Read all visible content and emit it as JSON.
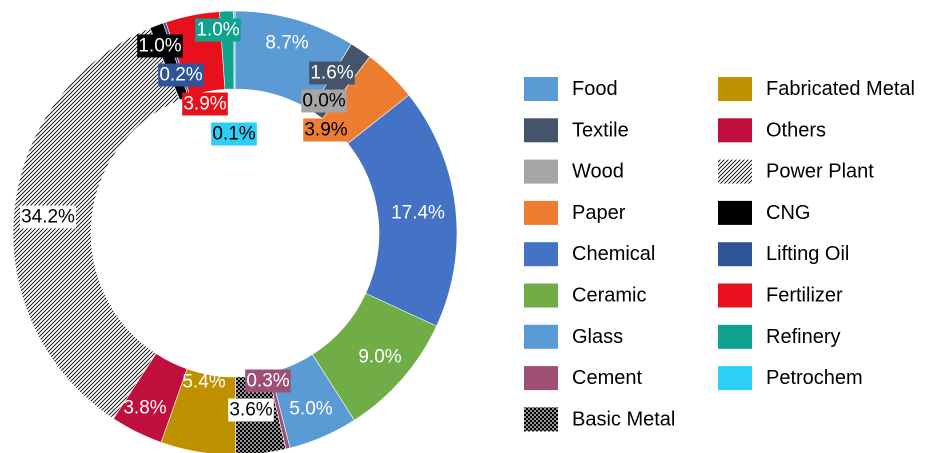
{
  "chart_data": {
    "type": "donut",
    "legend_position": "right",
    "unit": "%",
    "slices": [
      {
        "name": "Food",
        "value": 8.7,
        "label": "8.7%",
        "color": "#5b9bd5",
        "pattern": "solid",
        "label_bg": "",
        "label_color": "#ffffff"
      },
      {
        "name": "Textile",
        "value": 1.6,
        "label": "1.6%",
        "color": "#44546a",
        "pattern": "solid",
        "label_bg": "#44546a",
        "label_color": "#ffffff"
      },
      {
        "name": "Wood",
        "value": 0.0,
        "label": "0.0%",
        "color": "#a5a5a5",
        "pattern": "solid",
        "label_bg": "#a5a5a5",
        "label_color": "#000000"
      },
      {
        "name": "Paper",
        "value": 3.9,
        "label": "3.9%",
        "color": "#ed7d31",
        "pattern": "solid",
        "label_bg": "#ed7d31",
        "label_color": "#000000"
      },
      {
        "name": "Chemical",
        "value": 17.4,
        "label": "17.4%",
        "color": "#4472c4",
        "pattern": "solid",
        "label_bg": "",
        "label_color": "#ffffff"
      },
      {
        "name": "Ceramic",
        "value": 9.0,
        "label": "9.0%",
        "color": "#70ad47",
        "pattern": "solid",
        "label_bg": "",
        "label_color": "#ffffff"
      },
      {
        "name": "Glass",
        "value": 5.0,
        "label": "5.0%",
        "color": "#5b9bd5",
        "pattern": "solid",
        "label_bg": "#5b9bd5",
        "label_color": "#ffffff"
      },
      {
        "name": "Cement",
        "value": 0.3,
        "label": "0.3%",
        "color": "#9e4f76",
        "pattern": "solid",
        "label_bg": "#9e4f76",
        "label_color": "#ffffff"
      },
      {
        "name": "Basic Metal",
        "value": 3.6,
        "label": "3.6%",
        "color": "#000000",
        "pattern": "dots",
        "label_bg": "#ffffff",
        "label_color": "#000000"
      },
      {
        "name": "Fabricated Metal",
        "value": 5.4,
        "label": "5.4%",
        "color": "#bf9000",
        "pattern": "solid",
        "label_bg": "",
        "label_color": "#ffffff"
      },
      {
        "name": "Others",
        "value": 3.8,
        "label": "3.8%",
        "color": "#c00f3c",
        "pattern": "solid",
        "label_bg": "",
        "label_color": "#ffffff"
      },
      {
        "name": "Power Plant",
        "value": 34.2,
        "label": "34.2%",
        "color": "#000000",
        "pattern": "hatch",
        "label_bg": "#ffffff",
        "label_color": "#000000"
      },
      {
        "name": "CNG",
        "value": 1.0,
        "label": "1.0%",
        "color": "#000000",
        "pattern": "solid",
        "label_bg": "#000000",
        "label_color": "#ffffff"
      },
      {
        "name": "Lifting Oil",
        "value": 0.2,
        "label": "0.2%",
        "color": "#2f5597",
        "pattern": "solid",
        "label_bg": "#2f5597",
        "label_color": "#ffffff"
      },
      {
        "name": "Fertilizer",
        "value": 3.9,
        "label": "3.9%",
        "color": "#e8101d",
        "pattern": "solid",
        "label_bg": "#e8101d",
        "label_color": "#ffffff"
      },
      {
        "name": "Refinery",
        "value": 1.0,
        "label": "1.0%",
        "color": "#0fa38f",
        "pattern": "solid",
        "label_bg": "#0fa38f",
        "label_color": "#ffffff"
      },
      {
        "name": "Petrochem",
        "value": 0.1,
        "label": "0.1%",
        "color": "#2ecff6",
        "pattern": "solid",
        "label_bg": "#2ecff6",
        "label_color": "#000000"
      }
    ],
    "legend_columns": [
      [
        "Food",
        "Textile",
        "Wood",
        "Paper",
        "Chemical",
        "Ceramic",
        "Glass",
        "Cement",
        "Basic Metal"
      ],
      [
        "Fabricated Metal",
        "Others",
        "Power Plant",
        "CNG",
        "Lifting Oil",
        "Fertilizer",
        "Refinery",
        "Petrochem"
      ]
    ]
  }
}
